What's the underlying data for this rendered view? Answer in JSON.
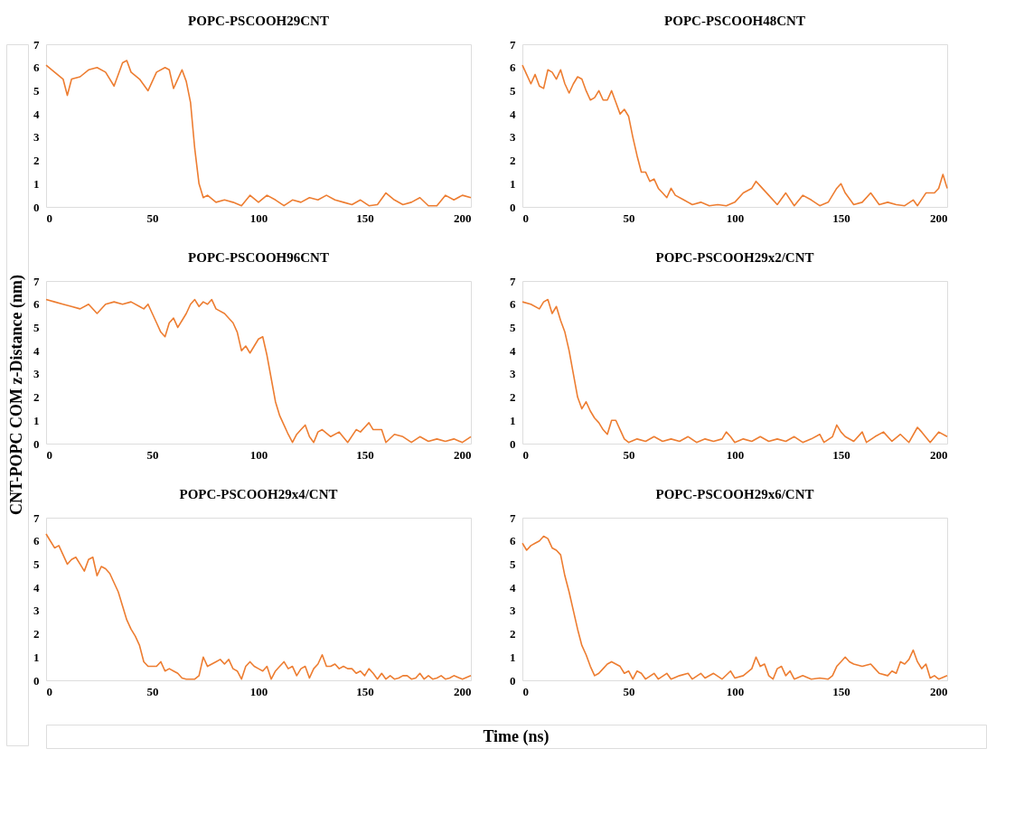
{
  "chart_data": [
    {
      "type": "line",
      "title": "POPC-PSCOOH29CNT",
      "xlim": [
        0,
        200
      ],
      "xticks": [
        0,
        50,
        100,
        150,
        200
      ],
      "ylim": [
        0,
        7
      ],
      "yticks": [
        0,
        1,
        2,
        3,
        4,
        5,
        6,
        7
      ],
      "grid": false,
      "series": [
        {
          "color": "#ed7d31",
          "x": [
            0,
            4,
            8,
            10,
            12,
            16,
            20,
            24,
            28,
            32,
            36,
            38,
            40,
            44,
            48,
            52,
            56,
            58,
            60,
            62,
            64,
            66,
            68,
            70,
            72,
            74,
            76,
            80,
            84,
            88,
            92,
            96,
            100,
            104,
            108,
            112,
            116,
            120,
            124,
            128,
            132,
            136,
            140,
            144,
            148,
            152,
            156,
            160,
            164,
            168,
            172,
            176,
            180,
            184,
            188,
            192,
            196,
            200
          ],
          "values": [
            6.1,
            5.8,
            5.5,
            4.8,
            5.5,
            5.6,
            5.9,
            6.0,
            5.8,
            5.2,
            6.2,
            6.3,
            5.8,
            5.5,
            5.0,
            5.8,
            6.0,
            5.9,
            5.1,
            5.5,
            5.9,
            5.4,
            4.5,
            2.5,
            1.0,
            0.4,
            0.5,
            0.2,
            0.3,
            0.2,
            0.05,
            0.5,
            0.2,
            0.5,
            0.3,
            0.05,
            0.3,
            0.2,
            0.4,
            0.3,
            0.5,
            0.3,
            0.2,
            0.1,
            0.3,
            0.05,
            0.1,
            0.6,
            0.3,
            0.1,
            0.2,
            0.4,
            0.05,
            0.05,
            0.5,
            0.3,
            0.5,
            0.4
          ]
        }
      ]
    },
    {
      "type": "line",
      "title": "POPC-PSCOOH48CNT",
      "xlim": [
        0,
        200
      ],
      "xticks": [
        0,
        50,
        100,
        150,
        200
      ],
      "ylim": [
        0,
        7
      ],
      "yticks": [
        0,
        1,
        2,
        3,
        4,
        5,
        6,
        7
      ],
      "grid": false,
      "series": [
        {
          "color": "#ed7d31",
          "x": [
            0,
            2,
            4,
            6,
            8,
            10,
            12,
            14,
            16,
            18,
            20,
            22,
            24,
            26,
            28,
            30,
            32,
            34,
            36,
            38,
            40,
            42,
            44,
            46,
            48,
            50,
            52,
            54,
            56,
            58,
            60,
            62,
            64,
            66,
            68,
            70,
            72,
            76,
            80,
            84,
            88,
            92,
            96,
            100,
            104,
            108,
            110,
            112,
            116,
            120,
            124,
            128,
            132,
            136,
            140,
            144,
            148,
            150,
            152,
            156,
            160,
            164,
            168,
            172,
            176,
            180,
            184,
            186,
            190,
            194,
            196,
            198,
            200
          ],
          "values": [
            6.1,
            5.7,
            5.3,
            5.7,
            5.2,
            5.1,
            5.9,
            5.8,
            5.5,
            5.9,
            5.3,
            4.9,
            5.3,
            5.6,
            5.5,
            5.0,
            4.6,
            4.7,
            5.0,
            4.6,
            4.6,
            5.0,
            4.5,
            4.0,
            4.2,
            3.9,
            3.0,
            2.2,
            1.5,
            1.5,
            1.1,
            1.2,
            0.8,
            0.6,
            0.4,
            0.8,
            0.5,
            0.3,
            0.1,
            0.2,
            0.05,
            0.1,
            0.05,
            0.2,
            0.6,
            0.8,
            1.1,
            0.9,
            0.5,
            0.1,
            0.6,
            0.05,
            0.5,
            0.3,
            0.05,
            0.2,
            0.8,
            1.0,
            0.6,
            0.1,
            0.2,
            0.6,
            0.1,
            0.2,
            0.1,
            0.05,
            0.3,
            0.05,
            0.6,
            0.6,
            0.8,
            1.4,
            0.8
          ]
        }
      ]
    },
    {
      "type": "line",
      "title": "POPC-PSCOOH96CNT",
      "ylabel": "CNT-POPC COM z-Distance (nm)",
      "xlim": [
        0,
        200
      ],
      "xticks": [
        0,
        50,
        100,
        150,
        200
      ],
      "ylim": [
        0,
        7
      ],
      "yticks": [
        0,
        1,
        2,
        3,
        4,
        5,
        6,
        7
      ],
      "grid": false,
      "series": [
        {
          "color": "#ed7d31",
          "x": [
            0,
            4,
            8,
            12,
            16,
            20,
            24,
            28,
            32,
            36,
            40,
            44,
            46,
            48,
            50,
            52,
            54,
            56,
            58,
            60,
            62,
            64,
            66,
            68,
            70,
            72,
            74,
            76,
            78,
            80,
            84,
            88,
            90,
            92,
            94,
            96,
            98,
            100,
            102,
            104,
            106,
            108,
            110,
            112,
            114,
            116,
            118,
            120,
            122,
            124,
            126,
            128,
            130,
            134,
            138,
            142,
            146,
            148,
            150,
            152,
            154,
            158,
            160,
            164,
            168,
            172,
            176,
            180,
            184,
            188,
            192,
            196,
            200
          ],
          "values": [
            6.2,
            6.1,
            6.0,
            5.9,
            5.8,
            6.0,
            5.6,
            6.0,
            6.1,
            6.0,
            6.1,
            5.9,
            5.8,
            6.0,
            5.6,
            5.2,
            4.8,
            4.6,
            5.2,
            5.4,
            5.0,
            5.3,
            5.6,
            6.0,
            6.2,
            5.9,
            6.1,
            6.0,
            6.2,
            5.8,
            5.6,
            5.2,
            4.8,
            4.0,
            4.2,
            3.9,
            4.2,
            4.5,
            4.6,
            3.8,
            2.8,
            1.8,
            1.2,
            0.8,
            0.4,
            0.05,
            0.4,
            0.6,
            0.8,
            0.3,
            0.05,
            0.5,
            0.6,
            0.3,
            0.5,
            0.05,
            0.6,
            0.5,
            0.7,
            0.9,
            0.6,
            0.6,
            0.05,
            0.4,
            0.3,
            0.05,
            0.3,
            0.1,
            0.2,
            0.1,
            0.2,
            0.05,
            0.3
          ]
        }
      ]
    },
    {
      "type": "line",
      "title": "POPC-PSCOOH29x2/CNT",
      "xlim": [
        0,
        200
      ],
      "xticks": [
        0,
        50,
        100,
        150,
        200
      ],
      "ylim": [
        0,
        7
      ],
      "yticks": [
        0,
        1,
        2,
        3,
        4,
        5,
        6,
        7
      ],
      "grid": false,
      "series": [
        {
          "color": "#ed7d31",
          "x": [
            0,
            4,
            8,
            10,
            12,
            14,
            16,
            18,
            20,
            22,
            24,
            26,
            28,
            30,
            32,
            34,
            36,
            38,
            40,
            42,
            44,
            46,
            48,
            50,
            54,
            58,
            62,
            66,
            70,
            74,
            78,
            82,
            86,
            90,
            94,
            96,
            98,
            100,
            104,
            108,
            112,
            116,
            120,
            124,
            128,
            132,
            136,
            140,
            142,
            146,
            148,
            150,
            152,
            156,
            160,
            162,
            166,
            170,
            174,
            178,
            182,
            186,
            188,
            192,
            196,
            200
          ],
          "values": [
            6.1,
            6.0,
            5.8,
            6.1,
            6.2,
            5.6,
            5.9,
            5.3,
            4.8,
            4.0,
            3.0,
            2.0,
            1.5,
            1.8,
            1.4,
            1.1,
            0.9,
            0.6,
            0.4,
            1.0,
            1.0,
            0.6,
            0.2,
            0.05,
            0.2,
            0.1,
            0.3,
            0.1,
            0.2,
            0.1,
            0.3,
            0.05,
            0.2,
            0.1,
            0.2,
            0.5,
            0.3,
            0.05,
            0.2,
            0.1,
            0.3,
            0.1,
            0.2,
            0.1,
            0.3,
            0.05,
            0.2,
            0.4,
            0.05,
            0.3,
            0.8,
            0.5,
            0.3,
            0.1,
            0.5,
            0.05,
            0.3,
            0.5,
            0.1,
            0.4,
            0.05,
            0.7,
            0.5,
            0.05,
            0.5,
            0.3
          ]
        }
      ]
    },
    {
      "type": "line",
      "title": "POPC-PSCOOH29x4/CNT",
      "xlabel": "Time (ns)",
      "xlim": [
        0,
        200
      ],
      "xticks": [
        0,
        50,
        100,
        150,
        200
      ],
      "ylim": [
        0,
        7
      ],
      "yticks": [
        0,
        1,
        2,
        3,
        4,
        5,
        6,
        7
      ],
      "grid": false,
      "series": [
        {
          "color": "#ed7d31",
          "x": [
            0,
            2,
            4,
            6,
            8,
            10,
            12,
            14,
            16,
            18,
            20,
            22,
            24,
            26,
            28,
            30,
            32,
            34,
            36,
            38,
            40,
            42,
            44,
            46,
            48,
            50,
            52,
            54,
            56,
            58,
            60,
            62,
            64,
            66,
            68,
            70,
            72,
            74,
            76,
            78,
            80,
            82,
            84,
            86,
            88,
            90,
            92,
            94,
            96,
            98,
            100,
            102,
            104,
            106,
            108,
            110,
            112,
            114,
            116,
            118,
            120,
            122,
            124,
            126,
            128,
            130,
            132,
            134,
            136,
            138,
            140,
            142,
            144,
            146,
            148,
            150,
            152,
            154,
            156,
            158,
            160,
            162,
            164,
            166,
            168,
            170,
            172,
            174,
            176,
            178,
            180,
            182,
            184,
            186,
            188,
            190,
            192,
            196,
            200
          ],
          "values": [
            6.3,
            6.0,
            5.7,
            5.8,
            5.4,
            5.0,
            5.2,
            5.3,
            5.0,
            4.7,
            5.2,
            5.3,
            4.5,
            4.9,
            4.8,
            4.6,
            4.2,
            3.8,
            3.2,
            2.6,
            2.2,
            1.9,
            1.5,
            0.8,
            0.6,
            0.6,
            0.6,
            0.8,
            0.4,
            0.5,
            0.4,
            0.3,
            0.1,
            0.05,
            0.05,
            0.05,
            0.2,
            1.0,
            0.6,
            0.7,
            0.8,
            0.9,
            0.7,
            0.9,
            0.5,
            0.4,
            0.05,
            0.6,
            0.8,
            0.6,
            0.5,
            0.4,
            0.6,
            0.05,
            0.4,
            0.6,
            0.8,
            0.5,
            0.6,
            0.2,
            0.5,
            0.6,
            0.1,
            0.5,
            0.7,
            1.1,
            0.6,
            0.6,
            0.7,
            0.5,
            0.6,
            0.5,
            0.5,
            0.3,
            0.4,
            0.2,
            0.5,
            0.3,
            0.05,
            0.3,
            0.05,
            0.2,
            0.05,
            0.1,
            0.2,
            0.2,
            0.05,
            0.1,
            0.3,
            0.05,
            0.2,
            0.05,
            0.1,
            0.2,
            0.05,
            0.1,
            0.2,
            0.05,
            0.2
          ]
        }
      ]
    },
    {
      "type": "line",
      "title": "POPC-PSCOOH29x6/CNT",
      "xlim": [
        0,
        200
      ],
      "xticks": [
        0,
        50,
        100,
        150,
        200
      ],
      "ylim": [
        0,
        7
      ],
      "yticks": [
        0,
        1,
        2,
        3,
        4,
        5,
        6,
        7
      ],
      "grid": false,
      "series": [
        {
          "color": "#ed7d31",
          "x": [
            0,
            2,
            4,
            6,
            8,
            10,
            12,
            14,
            16,
            18,
            20,
            22,
            24,
            26,
            28,
            30,
            32,
            34,
            36,
            38,
            40,
            42,
            44,
            46,
            48,
            50,
            52,
            54,
            56,
            58,
            62,
            64,
            68,
            70,
            74,
            78,
            80,
            84,
            86,
            90,
            94,
            98,
            100,
            104,
            108,
            110,
            112,
            114,
            116,
            118,
            120,
            122,
            124,
            126,
            128,
            132,
            136,
            140,
            144,
            146,
            148,
            150,
            152,
            154,
            156,
            160,
            164,
            166,
            168,
            172,
            174,
            176,
            178,
            180,
            182,
            184,
            186,
            188,
            190,
            192,
            194,
            196,
            200
          ],
          "values": [
            5.9,
            5.6,
            5.8,
            5.9,
            6.0,
            6.2,
            6.1,
            5.7,
            5.6,
            5.4,
            4.5,
            3.8,
            3.0,
            2.2,
            1.5,
            1.1,
            0.6,
            0.2,
            0.3,
            0.5,
            0.7,
            0.8,
            0.7,
            0.6,
            0.3,
            0.4,
            0.05,
            0.4,
            0.3,
            0.05,
            0.3,
            0.05,
            0.3,
            0.05,
            0.2,
            0.3,
            0.05,
            0.3,
            0.1,
            0.3,
            0.05,
            0.4,
            0.1,
            0.2,
            0.5,
            1.0,
            0.6,
            0.7,
            0.2,
            0.05,
            0.5,
            0.6,
            0.2,
            0.4,
            0.05,
            0.2,
            0.05,
            0.1,
            0.05,
            0.2,
            0.6,
            0.8,
            1.0,
            0.8,
            0.7,
            0.6,
            0.7,
            0.5,
            0.3,
            0.2,
            0.4,
            0.3,
            0.8,
            0.7,
            0.9,
            1.3,
            0.8,
            0.5,
            0.7,
            0.1,
            0.2,
            0.05,
            0.2
          ]
        }
      ]
    }
  ]
}
